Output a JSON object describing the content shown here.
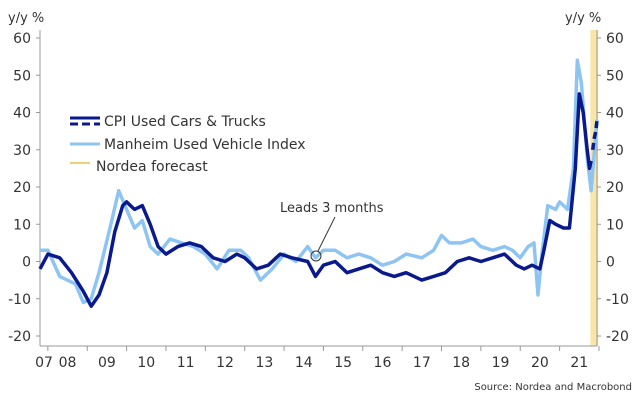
{
  "chart_data": {
    "type": "line",
    "ylabel_left": "y/y %",
    "ylabel_right": "y/y %",
    "ylim": [
      -20,
      60
    ],
    "yticks": [
      -20,
      -10,
      0,
      10,
      20,
      30,
      40,
      50,
      60
    ],
    "xlim": [
      2007.8,
      2021.95
    ],
    "xtick_labels": [
      "07",
      "08",
      "09",
      "10",
      "11",
      "12",
      "13",
      "14",
      "15",
      "16",
      "17",
      "18",
      "19",
      "20",
      "21"
    ],
    "legend": {
      "placement": "upper-left",
      "entries": [
        "CPI Used Cars & Trucks",
        "Manheim Used Vehicle Index",
        "Nordea forecast"
      ]
    },
    "annotation": "Leads 3 months",
    "source": "Source: Nordea and Macrobond",
    "forecast_band": [
      2021.78,
      2021.98
    ],
    "colors": {
      "cpi": "#0a1a8c",
      "manheim": "#8ec4f2",
      "forecast": "#f7e6a6"
    },
    "series": [
      {
        "name": "CPI Used Cars & Trucks",
        "points": [
          [
            2007.8,
            -2
          ],
          [
            2008.0,
            2
          ],
          [
            2008.3,
            1
          ],
          [
            2008.6,
            -3
          ],
          [
            2008.9,
            -8
          ],
          [
            2009.1,
            -12
          ],
          [
            2009.3,
            -9
          ],
          [
            2009.5,
            -3
          ],
          [
            2009.7,
            8
          ],
          [
            2009.9,
            15
          ],
          [
            2010.0,
            16
          ],
          [
            2010.2,
            14
          ],
          [
            2010.4,
            15
          ],
          [
            2010.6,
            10
          ],
          [
            2010.8,
            4
          ],
          [
            2011.0,
            2
          ],
          [
            2011.3,
            4
          ],
          [
            2011.6,
            5
          ],
          [
            2011.9,
            4
          ],
          [
            2012.2,
            1
          ],
          [
            2012.5,
            0
          ],
          [
            2012.8,
            2
          ],
          [
            2013.0,
            1
          ],
          [
            2013.3,
            -2
          ],
          [
            2013.6,
            -1
          ],
          [
            2013.9,
            2
          ],
          [
            2014.2,
            1
          ],
          [
            2014.6,
            0
          ],
          [
            2014.8,
            -4
          ],
          [
            2015.0,
            -1
          ],
          [
            2015.3,
            0
          ],
          [
            2015.6,
            -3
          ],
          [
            2015.9,
            -2
          ],
          [
            2016.2,
            -1
          ],
          [
            2016.5,
            -3
          ],
          [
            2016.8,
            -4
          ],
          [
            2017.1,
            -3
          ],
          [
            2017.5,
            -5
          ],
          [
            2017.8,
            -4
          ],
          [
            2018.1,
            -3
          ],
          [
            2018.4,
            0
          ],
          [
            2018.7,
            1
          ],
          [
            2019.0,
            0
          ],
          [
            2019.3,
            1
          ],
          [
            2019.6,
            2
          ],
          [
            2019.9,
            -1
          ],
          [
            2020.1,
            -2
          ],
          [
            2020.3,
            -1
          ],
          [
            2020.5,
            -2
          ],
          [
            2020.6,
            3
          ],
          [
            2020.75,
            11
          ],
          [
            2020.9,
            10
          ],
          [
            2021.1,
            9
          ],
          [
            2021.25,
            9
          ],
          [
            2021.4,
            25
          ],
          [
            2021.5,
            45
          ],
          [
            2021.6,
            40
          ],
          [
            2021.7,
            30
          ],
          [
            2021.76,
            25
          ],
          [
            2021.8,
            27
          ]
        ]
      },
      {
        "name": "CPI Used Cars & Trucks forecast",
        "points": [
          [
            2021.84,
            30
          ],
          [
            2021.88,
            33
          ],
          [
            2021.92,
            35
          ],
          [
            2021.95,
            38
          ]
        ]
      },
      {
        "name": "Manheim Used Vehicle Index",
        "points": [
          [
            2007.8,
            3
          ],
          [
            2008.0,
            3
          ],
          [
            2008.3,
            -4
          ],
          [
            2008.7,
            -6
          ],
          [
            2008.9,
            -11
          ],
          [
            2009.1,
            -10
          ],
          [
            2009.3,
            -3
          ],
          [
            2009.6,
            10
          ],
          [
            2009.8,
            19
          ],
          [
            2010.0,
            14
          ],
          [
            2010.2,
            9
          ],
          [
            2010.4,
            11
          ],
          [
            2010.6,
            4
          ],
          [
            2010.8,
            2
          ],
          [
            2011.1,
            6
          ],
          [
            2011.4,
            5
          ],
          [
            2011.7,
            4
          ],
          [
            2012.0,
            2
          ],
          [
            2012.3,
            -2
          ],
          [
            2012.6,
            3
          ],
          [
            2012.9,
            3
          ],
          [
            2013.1,
            1
          ],
          [
            2013.4,
            -5
          ],
          [
            2013.7,
            -2
          ],
          [
            2014.0,
            2
          ],
          [
            2014.3,
            0
          ],
          [
            2014.6,
            4
          ],
          [
            2014.8,
            1
          ],
          [
            2015.0,
            3
          ],
          [
            2015.3,
            3
          ],
          [
            2015.6,
            1
          ],
          [
            2015.9,
            2
          ],
          [
            2016.2,
            1
          ],
          [
            2016.5,
            -1
          ],
          [
            2016.8,
            0
          ],
          [
            2017.1,
            2
          ],
          [
            2017.5,
            1
          ],
          [
            2017.8,
            3
          ],
          [
            2018.0,
            7
          ],
          [
            2018.2,
            5
          ],
          [
            2018.5,
            5
          ],
          [
            2018.8,
            6
          ],
          [
            2019.0,
            4
          ],
          [
            2019.3,
            3
          ],
          [
            2019.6,
            4
          ],
          [
            2019.8,
            3
          ],
          [
            2020.0,
            1
          ],
          [
            2020.2,
            4
          ],
          [
            2020.35,
            5
          ],
          [
            2020.45,
            -9
          ],
          [
            2020.55,
            2
          ],
          [
            2020.7,
            15
          ],
          [
            2020.9,
            14
          ],
          [
            2021.0,
            16
          ],
          [
            2021.2,
            14
          ],
          [
            2021.35,
            25
          ],
          [
            2021.45,
            54
          ],
          [
            2021.55,
            48
          ],
          [
            2021.7,
            28
          ],
          [
            2021.8,
            19
          ],
          [
            2021.95,
            38
          ]
        ]
      }
    ]
  }
}
